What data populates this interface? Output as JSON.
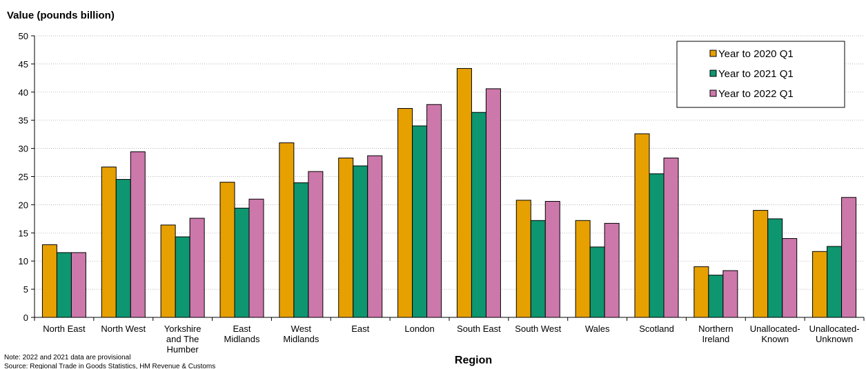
{
  "chart_data": {
    "type": "bar",
    "ylabel": "Value (pounds billion)",
    "xlabel": "Region",
    "ylim": [
      0,
      50
    ],
    "ytick_step": 5,
    "grid": "horizontal dotted",
    "legend_position": "top-right",
    "categories": [
      [
        "North East"
      ],
      [
        "North West"
      ],
      [
        "Yorkshire",
        "and The",
        "Humber"
      ],
      [
        "East",
        "Midlands"
      ],
      [
        "West",
        "Midlands"
      ],
      [
        "East"
      ],
      [
        "London"
      ],
      [
        "South East"
      ],
      [
        "South West"
      ],
      [
        "Wales"
      ],
      [
        "Scotland"
      ],
      [
        "Northern",
        "Ireland"
      ],
      [
        "Unallocated-",
        "Known"
      ],
      [
        "Unallocated-",
        "Unknown"
      ]
    ],
    "series": [
      {
        "name": "Year to 2020 Q1",
        "color": "#E6A000",
        "values": [
          12.9,
          26.7,
          16.4,
          24.0,
          31.0,
          28.3,
          37.1,
          44.2,
          20.8,
          17.2,
          32.6,
          9.0,
          19.0,
          11.7
        ]
      },
      {
        "name": "Year to 2021 Q1",
        "color": "#0E9670",
        "values": [
          11.5,
          24.5,
          14.3,
          19.4,
          23.9,
          26.9,
          34.0,
          36.4,
          17.2,
          12.5,
          25.5,
          7.5,
          17.5,
          12.6
        ]
      },
      {
        "name": "Year to 2022 Q1",
        "color": "#CC78AA",
        "values": [
          11.5,
          29.4,
          17.6,
          21.0,
          25.9,
          28.7,
          37.8,
          40.6,
          20.6,
          16.7,
          28.3,
          8.3,
          14.0,
          21.3
        ]
      }
    ]
  },
  "notes": {
    "line1": "Note: 2022 and 2021 data are provisional",
    "line2": "Source: Regional Trade in Goods Statistics, HM Revenue & Customs"
  }
}
